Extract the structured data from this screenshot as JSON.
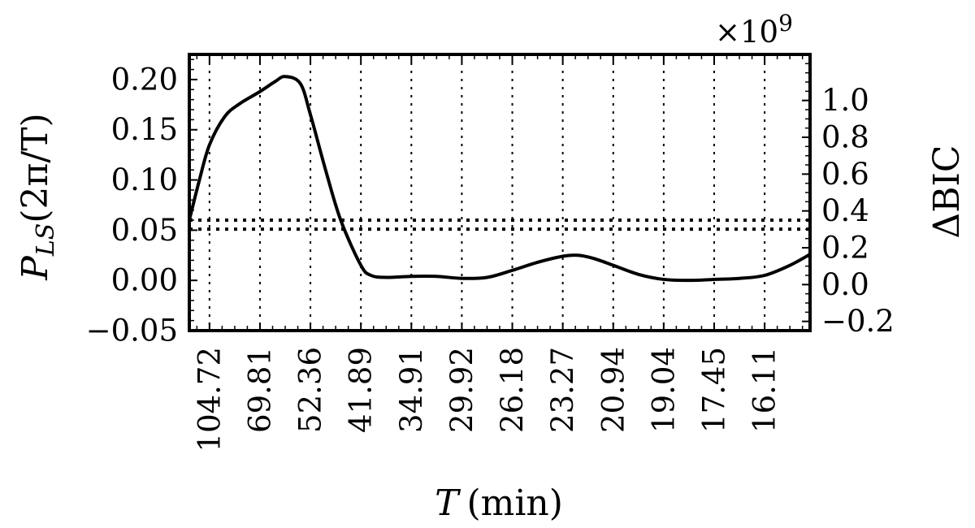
{
  "chart_data": {
    "type": "line",
    "xlabel_var": "T",
    "xlabel_unit": "(min)",
    "ylabel": "P_LS(2π/T)",
    "ylabel_parts": {
      "P": "P",
      "sub": "LS",
      "rest": "(2π/T)"
    },
    "y2label": "ΔBIC",
    "y2_offset_text": "×10^9",
    "x_ticks": [
      "104.72",
      "69.81",
      "52.36",
      "41.89",
      "34.91",
      "29.92",
      "26.18",
      "23.27",
      "20.94",
      "19.04",
      "17.45",
      "16.11"
    ],
    "y_ticks": [
      "0.20",
      "0.15",
      "0.10",
      "0.05",
      "0.00",
      "−0.05"
    ],
    "y_tick_values": [
      0.2,
      0.15,
      0.1,
      0.05,
      0.0,
      -0.05
    ],
    "y2_ticks": [
      "1.0",
      "0.8",
      "0.6",
      "0.4",
      "0.2",
      "0.0",
      "−0.2"
    ],
    "y2_tick_values": [
      1.0,
      0.8,
      0.6,
      0.4,
      0.2,
      0.0,
      -0.2
    ],
    "xlim_index": [
      -0.4,
      11.9
    ],
    "ylim": [
      -0.05,
      0.225
    ],
    "y2lim": [
      -0.25,
      1.25
    ],
    "grid": true,
    "series": [
      {
        "x": [
          -0.4,
          -0.2,
          0.0,
          0.3,
          0.6,
          1.0,
          1.3,
          1.5,
          1.8,
          2.0,
          2.3,
          2.6,
          3.0,
          3.2,
          3.5,
          4.0,
          4.5,
          5.0,
          5.5,
          6.0,
          6.5,
          7.0,
          7.3,
          7.6,
          8.0,
          8.5,
          9.0,
          9.5,
          10.0,
          10.5,
          11.0,
          11.5,
          11.9
        ],
        "y": [
          0.06,
          0.1,
          0.135,
          0.163,
          0.176,
          0.188,
          0.198,
          0.203,
          0.196,
          0.165,
          0.11,
          0.06,
          0.015,
          0.005,
          0.003,
          0.004,
          0.004,
          0.002,
          0.003,
          0.01,
          0.018,
          0.024,
          0.025,
          0.022,
          0.015,
          0.006,
          0.001,
          0.0,
          0.001,
          0.002,
          0.005,
          0.015,
          0.026
        ]
      }
    ],
    "hlines": [
      0.06,
      0.051
    ]
  }
}
